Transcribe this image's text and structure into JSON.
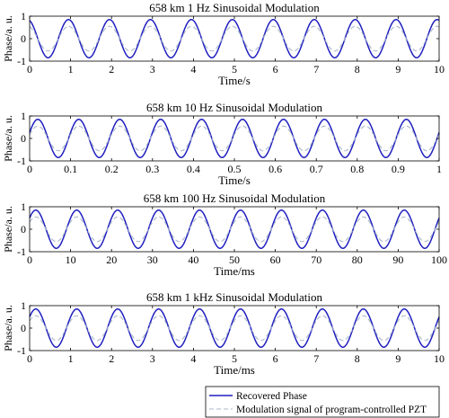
{
  "chart_data": [
    {
      "type": "line",
      "title": "658 km 1 Hz Sinusoidal Modulation",
      "xlabel": "Time/s",
      "ylabel": "Phase/a. u.",
      "xlim": [
        0,
        10
      ],
      "ylim": [
        -1,
        1
      ],
      "xticks": [
        "0",
        "1",
        "2",
        "3",
        "4",
        "5",
        "6",
        "7",
        "8",
        "9",
        "10"
      ],
      "yticks": [
        "1",
        "0",
        "-1"
      ],
      "cycles": 10,
      "series": [
        {
          "name": "Recovered Phase",
          "amplitude": 0.85,
          "phase_offset_periods": 0.3,
          "color": "#1f1fbf",
          "style": "solid"
        },
        {
          "name": "Modulation signal of program-controlled PZT",
          "amplitude": 0.55,
          "phase_offset_periods": 0.3,
          "color": "#a8b6c8",
          "style": "dashed"
        }
      ]
    },
    {
      "type": "line",
      "title": "658 km 10 Hz Sinusoidal Modulation",
      "xlabel": "Time/s",
      "ylabel": "Phase/a. u.",
      "xlim": [
        0,
        1
      ],
      "ylim": [
        -1,
        1
      ],
      "xticks": [
        "0",
        "0.1",
        "0.2",
        "0.3",
        "0.4",
        "0.5",
        "0.6",
        "0.7",
        "0.8",
        "0.9",
        "1"
      ],
      "yticks": [
        "1",
        "0",
        "-1"
      ],
      "cycles": 10,
      "series": [
        {
          "name": "Recovered Phase",
          "amplitude": 0.85,
          "phase_offset_periods": 0.05,
          "color": "#1f1fbf",
          "style": "solid"
        },
        {
          "name": "Modulation signal of program-controlled PZT",
          "amplitude": 0.55,
          "phase_offset_periods": 0.05,
          "color": "#a8b6c8",
          "style": "dashed"
        }
      ]
    },
    {
      "type": "line",
      "title": "658 km 100 Hz Sinusoidal Modulation",
      "xlabel": "Time/ms",
      "ylabel": "Phase/a. u.",
      "xlim": [
        0,
        100
      ],
      "ylim": [
        -1,
        1
      ],
      "xticks": [
        "0",
        "10",
        "20",
        "30",
        "40",
        "50",
        "60",
        "70",
        "80",
        "90",
        "100"
      ],
      "yticks": [
        "1",
        "0",
        "-1"
      ],
      "cycles": 10,
      "series": [
        {
          "name": "Recovered Phase",
          "amplitude": 0.85,
          "phase_offset_periods": 0.1,
          "color": "#1f1fbf",
          "style": "solid"
        },
        {
          "name": "Modulation signal of program-controlled PZT",
          "amplitude": 0.55,
          "phase_offset_periods": 0.1,
          "color": "#a8b6c8",
          "style": "dashed"
        }
      ]
    },
    {
      "type": "line",
      "title": "658 km 1 kHz Sinusoidal Modulation",
      "xlabel": "Time/ms",
      "ylabel": "Phase/a. u.",
      "xlim": [
        0,
        10
      ],
      "ylim": [
        -1,
        1
      ],
      "xticks": [
        "0",
        "1",
        "2",
        "3",
        "4",
        "5",
        "6",
        "7",
        "8",
        "9",
        "10"
      ],
      "yticks": [
        "1",
        "0",
        "-1"
      ],
      "cycles": 10,
      "series": [
        {
          "name": "Recovered Phase",
          "amplitude": 0.85,
          "phase_offset_periods": 0.1,
          "color": "#1f1fbf",
          "style": "solid"
        },
        {
          "name": "Modulation signal of program-controlled PZT",
          "amplitude": 0.55,
          "phase_offset_periods": 0.1,
          "color": "#a8b6c8",
          "style": "dashed"
        }
      ]
    }
  ],
  "legend": {
    "placement": "bottom-right",
    "entries": [
      {
        "label": "Recovered Phase",
        "color": "#1f1fbf",
        "style": "solid"
      },
      {
        "label": "Modulation signal of program-controlled PZT",
        "color": "#a8b6c8",
        "style": "dashed"
      }
    ]
  }
}
